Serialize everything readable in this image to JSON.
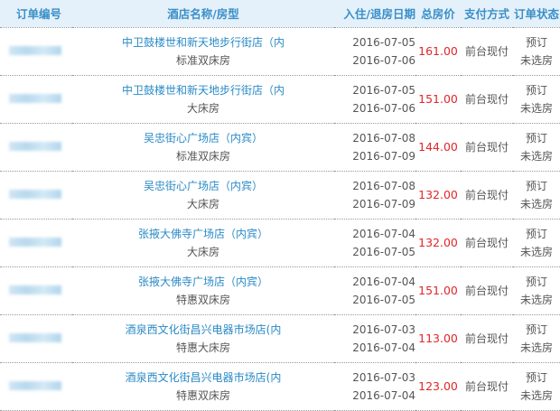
{
  "headers": [
    "订单编号",
    "酒店名称/房型",
    "入住/退房日期",
    "总房价",
    "支付方式",
    "订单状态"
  ],
  "rows": [
    {
      "hotel": "中卫鼓楼世和新天地步行街店（内",
      "room": "标准双床房",
      "checkin": "2016-07-05",
      "checkout": "2016-07-06",
      "price": "161.00",
      "pay": "前台现付",
      "status1": "预订",
      "status2": "未选房"
    },
    {
      "hotel": "中卫鼓楼世和新天地步行街店（内",
      "room": "大床房",
      "checkin": "2016-07-05",
      "checkout": "2016-07-06",
      "price": "151.00",
      "pay": "前台现付",
      "status1": "预订",
      "status2": "未选房"
    },
    {
      "hotel": "吴忠街心广场店（内宾）",
      "room": "标准双床房",
      "checkin": "2016-07-08",
      "checkout": "2016-07-09",
      "price": "144.00",
      "pay": "前台现付",
      "status1": "预订",
      "status2": "未选房"
    },
    {
      "hotel": "吴忠街心广场店（内宾）",
      "room": "大床房",
      "checkin": "2016-07-08",
      "checkout": "2016-07-09",
      "price": "132.00",
      "pay": "前台现付",
      "status1": "预订",
      "status2": "未选房"
    },
    {
      "hotel": "张掖大佛寺广场店（内宾）",
      "room": "大床房",
      "checkin": "2016-07-04",
      "checkout": "2016-07-05",
      "price": "132.00",
      "pay": "前台现付",
      "status1": "预订",
      "status2": "未选房"
    },
    {
      "hotel": "张掖大佛寺广场店（内宾）",
      "room": "特惠双床房",
      "checkin": "2016-07-04",
      "checkout": "2016-07-05",
      "price": "151.00",
      "pay": "前台现付",
      "status1": "预订",
      "status2": "未选房"
    },
    {
      "hotel": "酒泉西文化街昌兴电器市场店(内",
      "room": "特惠大床房",
      "checkin": "2016-07-03",
      "checkout": "2016-07-04",
      "price": "113.00",
      "pay": "前台现付",
      "status1": "预订",
      "status2": "未选房"
    },
    {
      "hotel": "酒泉西文化街昌兴电器市场店(内",
      "room": "特惠双床房",
      "checkin": "2016-07-03",
      "checkout": "2016-07-04",
      "price": "123.00",
      "pay": "前台现付",
      "status1": "预订",
      "status2": "未选房"
    }
  ]
}
